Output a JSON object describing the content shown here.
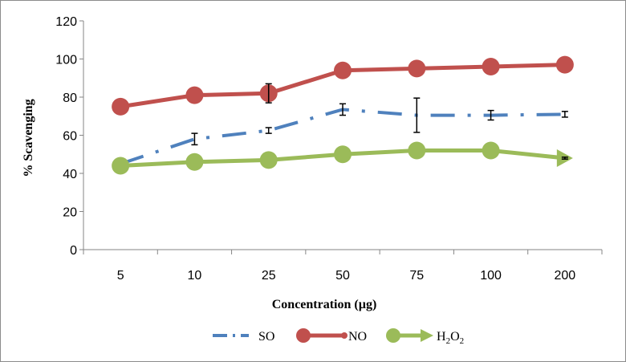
{
  "chart_data": {
    "type": "line",
    "categories": [
      "5",
      "10",
      "25",
      "50",
      "75",
      "100",
      "200"
    ],
    "xlabel": "Concentration (µg)",
    "ylabel": "% Scavenging",
    "ylim": [
      0,
      120
    ],
    "yticks": [
      0,
      20,
      40,
      60,
      80,
      100,
      120
    ],
    "grid": false,
    "legend_position": "bottom",
    "series": [
      {
        "name": "SO",
        "color": "#4f81bd",
        "style": "dash-dot",
        "marker": "none",
        "values": [
          45,
          58,
          62.5,
          73.5,
          70.5,
          70.5,
          71
        ],
        "error": [
          null,
          3,
          1.5,
          3,
          9,
          2.5,
          1.5
        ]
      },
      {
        "name": "NO",
        "color": "#c0504d",
        "style": "solid",
        "marker": "circle",
        "values": [
          75,
          81,
          82,
          94,
          95,
          96,
          97
        ],
        "error": [
          null,
          null,
          5,
          null,
          null,
          null,
          null
        ]
      },
      {
        "name": "H2O2",
        "name_parts": [
          "H",
          "2",
          "O",
          "2"
        ],
        "color": "#9bbb59",
        "style": "solid",
        "marker": "circle",
        "end_marker": "arrow",
        "values": [
          44,
          46,
          47,
          50,
          52,
          52,
          48
        ],
        "error": [
          null,
          null,
          null,
          null,
          null,
          null,
          0.5
        ]
      }
    ]
  }
}
